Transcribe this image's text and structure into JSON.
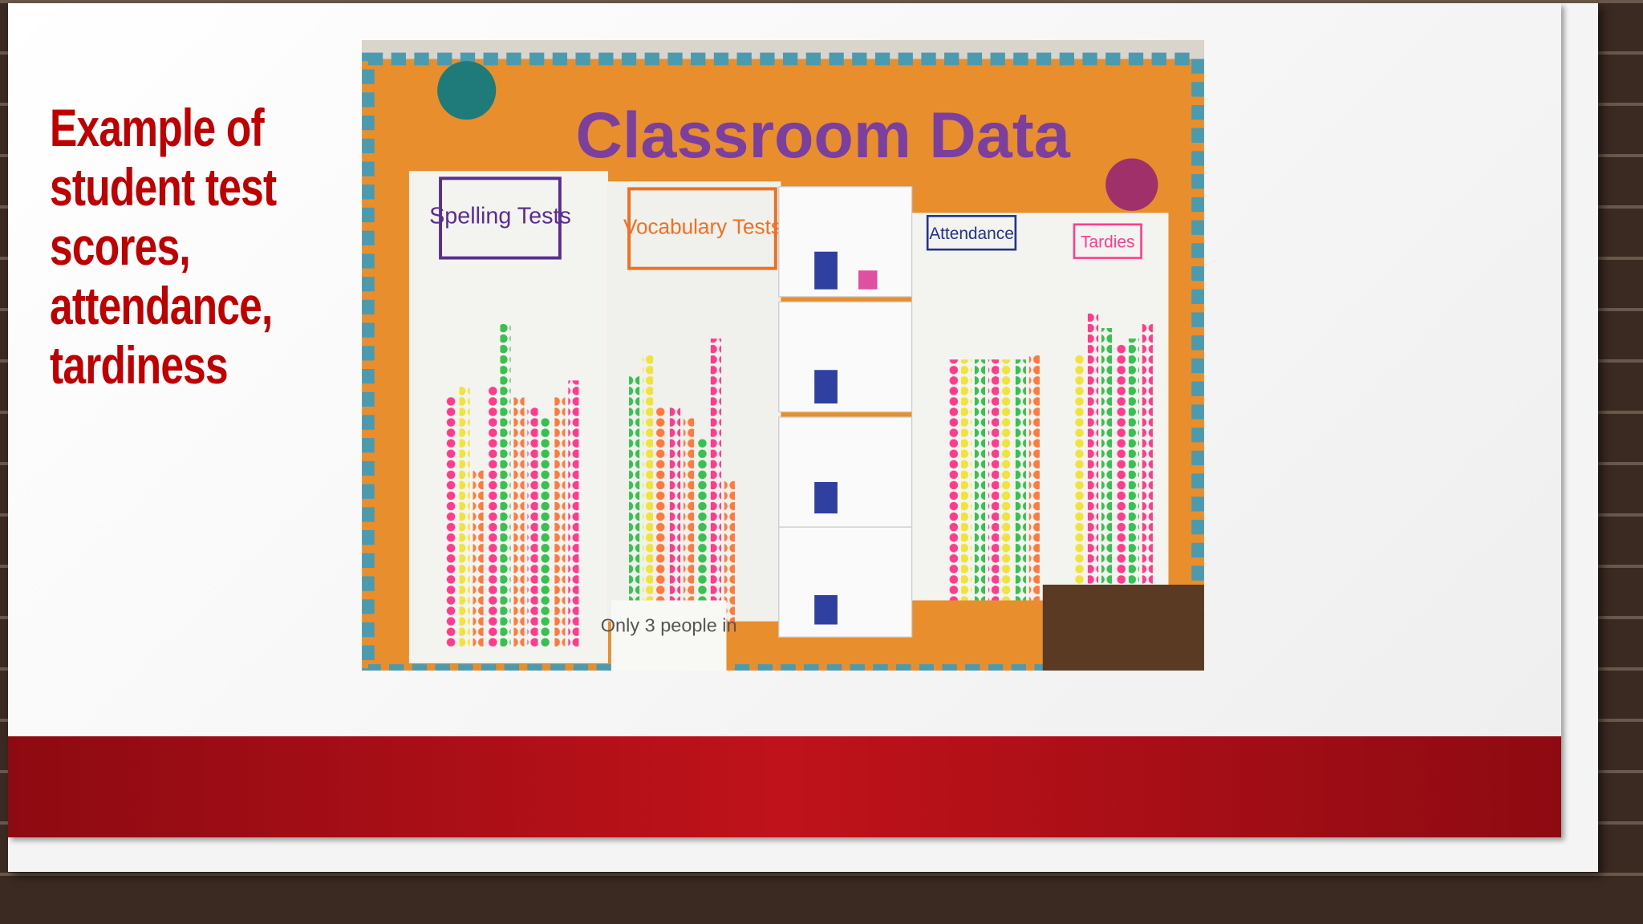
{
  "slide": {
    "title": "Example of student test scores, attendance, tardiness",
    "photo": {
      "heading": "Classroom Data",
      "posters": [
        "Spelling Tests",
        "Vocabulary Tests",
        "Attendance",
        "Tardies"
      ],
      "note": "Only 3 people in"
    }
  }
}
